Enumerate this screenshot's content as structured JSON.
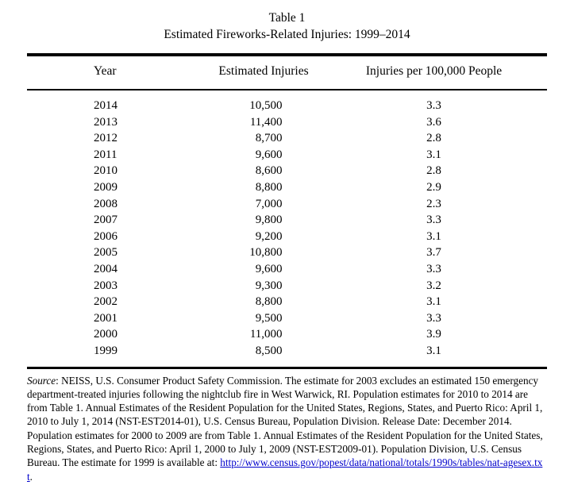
{
  "title": {
    "line1": "Table 1",
    "line2": "Estimated Fireworks-Related Injuries: 1999–2014"
  },
  "table": {
    "headers": [
      "Year",
      "Estimated Injuries",
      "Injuries per 100,000 People"
    ],
    "rows": [
      {
        "year": "2014",
        "injuries": "10,500",
        "rate": "3.3"
      },
      {
        "year": "2013",
        "injuries": "11,400",
        "rate": "3.6"
      },
      {
        "year": "2012",
        "injuries": "8,700",
        "rate": "2.8"
      },
      {
        "year": "2011",
        "injuries": "9,600",
        "rate": "3.1"
      },
      {
        "year": "2010",
        "injuries": "8,600",
        "rate": "2.8"
      },
      {
        "year": "2009",
        "injuries": "8,800",
        "rate": "2.9"
      },
      {
        "year": "2008",
        "injuries": "7,000",
        "rate": "2.3"
      },
      {
        "year": "2007",
        "injuries": "9,800",
        "rate": "3.3"
      },
      {
        "year": "2006",
        "injuries": "9,200",
        "rate": "3.1"
      },
      {
        "year": "2005",
        "injuries": "10,800",
        "rate": "3.7"
      },
      {
        "year": "2004",
        "injuries": "9,600",
        "rate": "3.3"
      },
      {
        "year": "2003",
        "injuries": "9,300",
        "rate": "3.2"
      },
      {
        "year": "2002",
        "injuries": "8,800",
        "rate": "3.1"
      },
      {
        "year": "2001",
        "injuries": "9,500",
        "rate": "3.3"
      },
      {
        "year": "2000",
        "injuries": "11,000",
        "rate": "3.9"
      },
      {
        "year": "1999",
        "injuries": "8,500",
        "rate": "3.1"
      }
    ]
  },
  "source_note": {
    "label": "Source",
    "text": ":  NEISS, U.S. Consumer Product Safety Commission. The estimate for 2003 excludes an estimated 150 emergency department-treated injuries following the nightclub fire in West Warwick, RI. Population estimates for 2010 to 2014 are from Table 1. Annual Estimates of the Resident Population for the United States, Regions, States, and Puerto Rico: April 1, 2010 to July 1, 2014 (NST-EST2014-01), U.S. Census Bureau, Population Division. Release Date: December 2014. Population estimates for 2000 to 2009 are from Table 1. Annual Estimates of the Resident Population for the United States, Regions, States, and Puerto Rico: April 1, 2000 to July 1, 2009 (NST-EST2009-01). Population Division, U.S. Census Bureau.  The estimate for 1999 is available at: ",
    "link": "http://www.census.gov/popest/data/national/totals/1990s/tables/nat-agesex.txt",
    "link_suffix": "."
  },
  "colors": {
    "text": "#000000",
    "link": "#0000cc",
    "background": "#ffffff"
  }
}
